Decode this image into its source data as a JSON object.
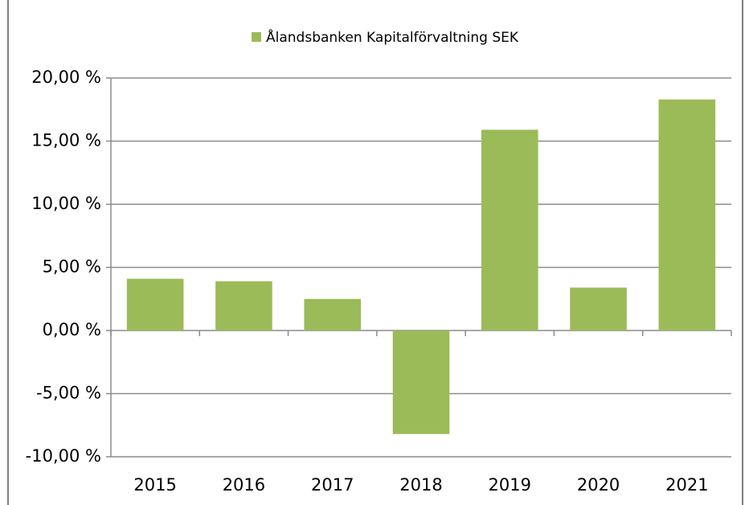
{
  "chart_data": {
    "type": "bar",
    "categories": [
      "2015",
      "2016",
      "2017",
      "2018",
      "2019",
      "2020",
      "2021"
    ],
    "series": [
      {
        "name": "Ålandsbanken Kapitalförvaltning SEK",
        "color": "#9bbb59",
        "values": [
          4.1,
          3.9,
          2.5,
          -8.2,
          15.9,
          3.4,
          18.3
        ]
      }
    ],
    "ylim": [
      -10,
      20
    ],
    "yticks": [
      {
        "value": -10,
        "label": "-10,00 %"
      },
      {
        "value": -5,
        "label": "-5,00 %"
      },
      {
        "value": 0,
        "label": "0,00 %"
      },
      {
        "value": 5,
        "label": "5,00 %"
      },
      {
        "value": 10,
        "label": "10,00 %"
      },
      {
        "value": 15,
        "label": "15,00 %"
      },
      {
        "value": 20,
        "label": "20,00 %"
      }
    ],
    "grid": true,
    "legend": "top"
  }
}
